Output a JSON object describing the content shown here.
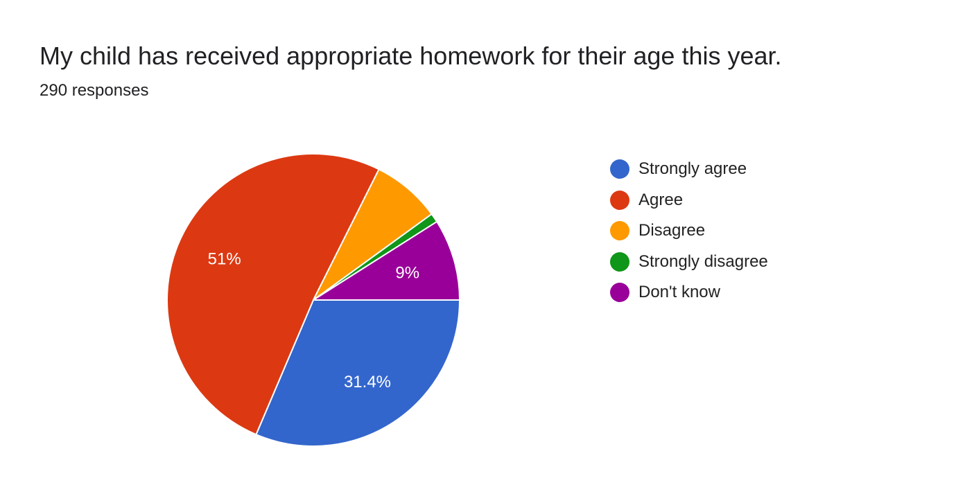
{
  "header": {
    "title": "My child has received appropriate homework for their age this year.",
    "responses": "290 responses"
  },
  "chart_data": {
    "type": "pie",
    "start_angle_deg": 90,
    "direction": "clockwise",
    "legend_position": "right",
    "slices": [
      {
        "label": "Strongly agree",
        "value": 31.4,
        "display": "31.4%",
        "color": "#3366cc"
      },
      {
        "label": "Agree",
        "value": 51.0,
        "display": "51%",
        "color": "#dc3912"
      },
      {
        "label": "Disagree",
        "value": 7.6,
        "display": "",
        "color": "#ff9900"
      },
      {
        "label": "Strongly disagree",
        "value": 1.0,
        "display": "",
        "color": "#109618"
      },
      {
        "label": "Don't know",
        "value": 9.0,
        "display": "9%",
        "color": "#990099"
      }
    ]
  }
}
